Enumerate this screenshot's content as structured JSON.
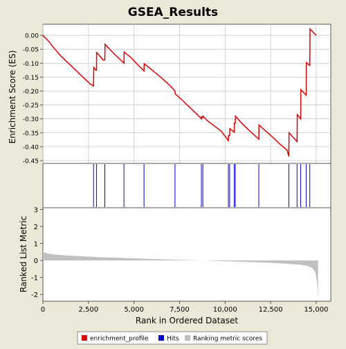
{
  "chart_data": {
    "title": "GSEA_Results",
    "type": "line",
    "xlabel": "Rank in Ordered Dataset",
    "x_range": [
      0,
      15800
    ],
    "x_ticks": [
      0,
      2500,
      5000,
      7500,
      10000,
      12500,
      15000
    ],
    "x_tick_labels": [
      "0",
      "2,500",
      "5,000",
      "7,500",
      "10,000",
      "12,500",
      "15,000"
    ],
    "enrichment_panel": {
      "ylabel": "Enrichment Score (ES)",
      "ylim": [
        -0.46,
        0.04
      ],
      "y_ticks": [
        0.0,
        -0.05,
        -0.1,
        -0.15,
        -0.2,
        -0.25,
        -0.3,
        -0.35,
        -0.4,
        -0.45
      ],
      "y_tick_labels": [
        "0.00",
        "-0.05",
        "-0.10",
        "-0.15",
        "-0.20",
        "-0.25",
        "-0.30",
        "-0.35",
        "-0.40",
        "-0.45"
      ],
      "grid": true,
      "series": [
        {
          "name": "enrichment_profile",
          "color": "#dd0000",
          "x": [
            0,
            300,
            600,
            1000,
            1400,
            1800,
            2200,
            2600,
            2780,
            2790,
            2900,
            2940,
            2950,
            3100,
            3300,
            3400,
            3410,
            3700,
            4000,
            4450,
            4460,
            4800,
            5200,
            5550,
            5560,
            6000,
            6500,
            7000,
            7250,
            7260,
            7600,
            8000,
            8400,
            8700,
            8710,
            8780,
            8790,
            9000,
            9400,
            9800,
            10180,
            10190,
            10250,
            10260,
            10500,
            10510,
            10560,
            10570,
            10900,
            11300,
            11850,
            11860,
            12200,
            12600,
            13000,
            13400,
            13500,
            13510,
            13950,
            13960,
            14150,
            14160,
            14450,
            14460,
            14650,
            14660,
            15000
          ],
          "y": [
            0.0,
            -0.02,
            -0.045,
            -0.075,
            -0.1,
            -0.125,
            -0.15,
            -0.175,
            -0.182,
            -0.115,
            -0.125,
            -0.125,
            -0.062,
            -0.072,
            -0.088,
            -0.088,
            -0.032,
            -0.052,
            -0.072,
            -0.1,
            -0.06,
            -0.078,
            -0.105,
            -0.128,
            -0.102,
            -0.125,
            -0.152,
            -0.182,
            -0.2,
            -0.21,
            -0.23,
            -0.255,
            -0.28,
            -0.3,
            -0.292,
            -0.296,
            -0.29,
            -0.305,
            -0.325,
            -0.345,
            -0.378,
            -0.36,
            -0.36,
            -0.335,
            -0.348,
            -0.315,
            -0.315,
            -0.29,
            -0.315,
            -0.34,
            -0.373,
            -0.322,
            -0.342,
            -0.365,
            -0.39,
            -0.412,
            -0.435,
            -0.35,
            -0.382,
            -0.285,
            -0.3,
            -0.195,
            -0.215,
            -0.098,
            -0.108,
            0.023,
            0.0
          ]
        }
      ]
    },
    "hits_panel": {
      "series_name": "Hits",
      "color": "#0000cc",
      "hit_ranks": [
        2780,
        2940,
        3400,
        4450,
        5550,
        7250,
        8700,
        8780,
        10180,
        10250,
        10500,
        10560,
        11850,
        13500,
        13950,
        14150,
        14450,
        14650
      ]
    },
    "ranking_panel": {
      "ylabel": "Ranked List Metric",
      "series_name": "Ranking metric scores",
      "color": "#c0c0c0",
      "ylim": [
        -2.4,
        3.1
      ],
      "y_ticks": [
        3,
        2,
        1,
        0,
        -1,
        -2
      ],
      "y_tick_labels": [
        "3",
        "2",
        "1",
        "0",
        "-1",
        "-2"
      ],
      "n_genes": 15100,
      "metric_x": [
        0,
        30,
        200,
        600,
        1500,
        3000,
        5000,
        7000,
        8800,
        10000,
        11500,
        12700,
        13500,
        14100,
        14500,
        14800,
        14950,
        15050,
        15100
      ],
      "metric_y": [
        0.6,
        0.5,
        0.42,
        0.35,
        0.28,
        0.2,
        0.12,
        0.05,
        0.0,
        -0.05,
        -0.1,
        -0.15,
        -0.2,
        -0.25,
        -0.32,
        -0.45,
        -0.7,
        -1.3,
        -2.3
      ]
    },
    "legend": {
      "placement": "bottom",
      "items": [
        {
          "label": "enrichment_profile",
          "color": "#dd0000"
        },
        {
          "label": "Hits",
          "color": "#0000cc"
        },
        {
          "label": "Ranking metric scores",
          "color": "#c0c0c0"
        }
      ]
    }
  }
}
